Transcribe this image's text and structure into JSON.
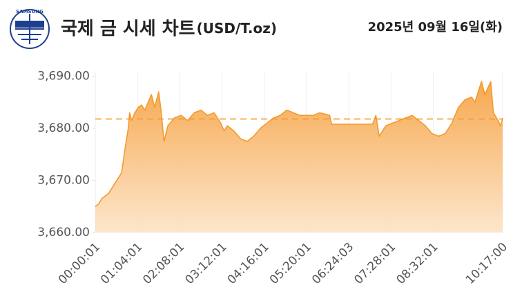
{
  "header": {
    "logo_text": "SAMSUNG",
    "title": "국제 금 시세 차트",
    "unit": "(USD/T.oz)",
    "date": "2025년 09월 16일(화)"
  },
  "chart_data": {
    "type": "area",
    "color": "#f39a2c",
    "reference_line": 3681.8,
    "x": [
      "00:00:01",
      "00:05",
      "00:10",
      "00:20",
      "00:30",
      "00:40",
      "00:45",
      "00:50",
      "00:52",
      "00:55",
      "01:00",
      "01:05",
      "01:10",
      "01:15",
      "01:20",
      "01:25",
      "01:30",
      "01:36",
      "01:40",
      "01:44",
      "01:50",
      "02:00",
      "02:10",
      "02:20",
      "02:30",
      "02:40",
      "02:50",
      "03:00",
      "03:10",
      "03:15",
      "03:20",
      "03:30",
      "03:40",
      "03:50",
      "04:00",
      "04:10",
      "04:20",
      "04:30",
      "04:40",
      "04:50",
      "05:00",
      "05:10",
      "05:20",
      "05:30",
      "05:40",
      "05:55",
      "05:58",
      "07:00",
      "07:05",
      "07:10",
      "07:20",
      "07:30",
      "07:40",
      "07:50",
      "08:00",
      "08:10",
      "08:20",
      "08:30",
      "08:40",
      "08:50",
      "09:00",
      "09:10",
      "09:20",
      "09:30",
      "09:35",
      "09:45",
      "09:50",
      "09:59",
      "10:03",
      "10:10",
      "10:14",
      "10:17:00"
    ],
    "values": [
      3665,
      3665.5,
      3666.5,
      3667.5,
      3669.5,
      3671.5,
      3676,
      3680,
      3683,
      3681.5,
      3683,
      3684,
      3684.5,
      3683.5,
      3685,
      3686.5,
      3684,
      3687,
      3683,
      3677.5,
      3680.5,
      3682,
      3682.5,
      3681.5,
      3683,
      3683.5,
      3682.5,
      3683,
      3681,
      3679.5,
      3680.5,
      3679.5,
      3678,
      3677.5,
      3678.5,
      3680,
      3681,
      3682,
      3682.5,
      3683.5,
      3683,
      3682.5,
      3682.5,
      3682.5,
      3683,
      3682.5,
      3680.8,
      3680.8,
      3682.5,
      3678.5,
      3680.5,
      3681,
      3681.5,
      3682,
      3682.5,
      3681.5,
      3680.5,
      3679,
      3678.5,
      3679,
      3681,
      3684,
      3685.5,
      3686,
      3685,
      3689,
      3686.5,
      3689,
      3683,
      3681.5,
      3680.5,
      3682
    ],
    "xlim": [
      "00:00:01",
      "10:17:00"
    ],
    "xticks": [
      "00:00:01",
      "01:04:01",
      "02:08:01",
      "03:12:01",
      "04:16:01",
      "05:20:01",
      "06:24:03",
      "07:28:01",
      "08:32:01",
      "10:17:00"
    ],
    "ylim": [
      3660,
      3691
    ],
    "yticks": [
      {
        "value": 3660,
        "label": "3,660.00"
      },
      {
        "value": 3670,
        "label": "3,670.00"
      },
      {
        "value": 3680,
        "label": "3,680.00"
      },
      {
        "value": 3690,
        "label": "3,690.00"
      }
    ],
    "grid": true
  }
}
